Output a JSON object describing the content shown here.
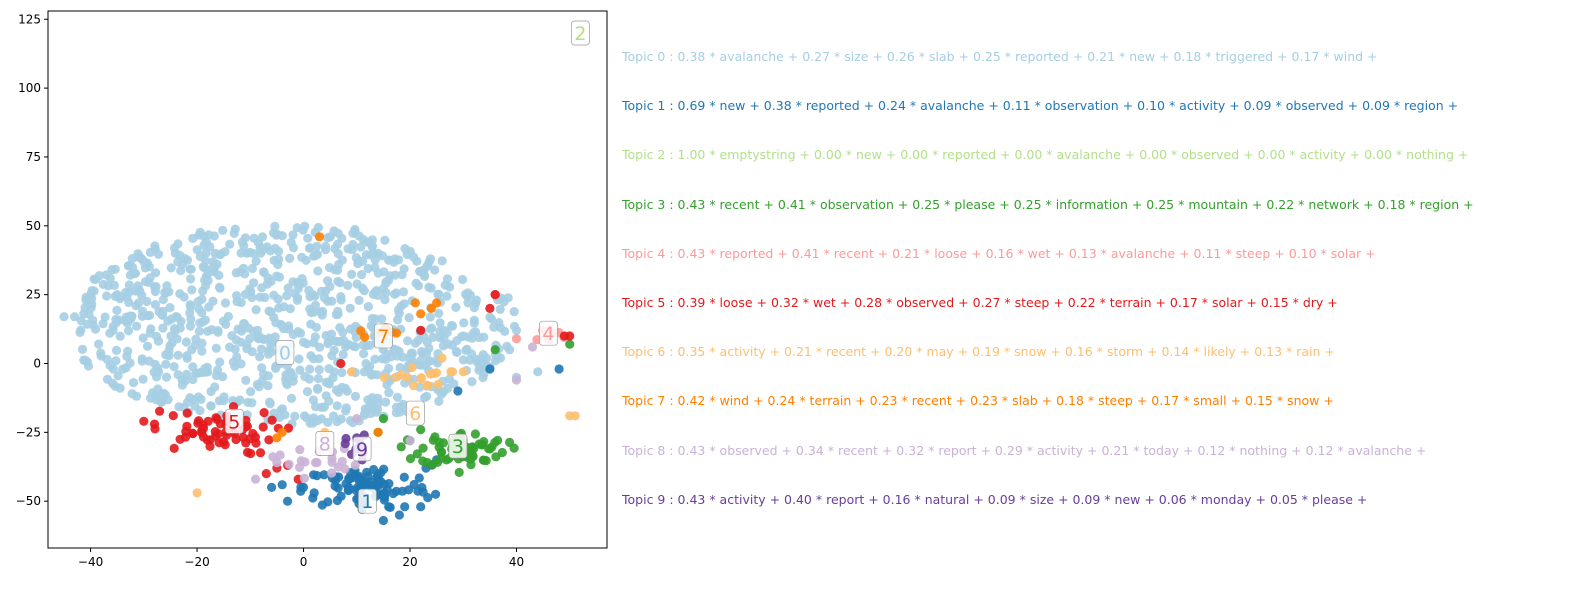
{
  "chart_data": {
    "type": "scatter",
    "title": "",
    "xlabel": "",
    "ylabel": "",
    "xlim": [
      -48,
      57
    ],
    "ylim": [
      -67,
      128
    ],
    "xticks": [
      -40,
      -20,
      0,
      20,
      40
    ],
    "yticks": [
      -50,
      -25,
      0,
      25,
      50,
      75,
      100,
      125
    ],
    "grid": false,
    "clusters": [
      {
        "id": 0,
        "label": "0",
        "color": "#a6cee3",
        "center": [
          -3.5,
          4
        ],
        "spread": [
          14,
          16
        ],
        "count": 900,
        "shape": "blob",
        "extra_points": [
          [
            -43,
            17
          ],
          [
            -45,
            17
          ],
          [
            -35,
            25
          ],
          [
            -21,
            5
          ],
          [
            -5,
            47
          ],
          [
            5,
            46
          ],
          [
            14,
            40
          ],
          [
            30,
            10
          ],
          [
            40,
            12
          ],
          [
            37,
            2
          ],
          [
            40,
            -5
          ],
          [
            44,
            -3
          ]
        ]
      },
      {
        "id": 1,
        "label": "1",
        "color": "#1f78b4",
        "center": [
          12,
          -45
        ],
        "spread": [
          6,
          4
        ],
        "count": 90,
        "shape": "cluster",
        "extra_points": [
          [
            -6,
            -45
          ],
          [
            -4,
            -44
          ],
          [
            -3,
            -50
          ],
          [
            0,
            -45
          ],
          [
            2,
            -47
          ],
          [
            16,
            -52
          ],
          [
            18,
            -55
          ],
          [
            19,
            -52
          ],
          [
            22,
            -52
          ],
          [
            11,
            -53
          ],
          [
            15,
            -57
          ],
          [
            36,
            25
          ],
          [
            48,
            -2
          ],
          [
            29,
            -10
          ],
          [
            25,
            -35
          ],
          [
            23,
            -38
          ],
          [
            35,
            -2
          ]
        ]
      },
      {
        "id": 2,
        "label": "2",
        "color": "#b2df8a",
        "center": [
          49,
          118
        ],
        "spread": [
          0,
          0
        ],
        "count": 0,
        "shape": "label-only",
        "extra_points": []
      },
      {
        "id": 3,
        "label": "3",
        "color": "#33a02c",
        "center": [
          30,
          -31
        ],
        "spread": [
          4,
          3
        ],
        "count": 70,
        "shape": "cluster",
        "extra_points": [
          [
            20,
            -28
          ],
          [
            22,
            -24
          ],
          [
            15,
            -20
          ],
          [
            14,
            -25
          ],
          [
            36,
            5
          ],
          [
            50,
            7
          ]
        ]
      },
      {
        "id": 4,
        "label": "4",
        "color": "#fb9a99",
        "center": [
          46,
          10
        ],
        "spread": [
          2,
          1.5
        ],
        "count": 8,
        "shape": "cluster",
        "extra_points": [
          [
            36,
            25
          ],
          [
            40,
            9
          ]
        ]
      },
      {
        "id": 5,
        "label": "5",
        "color": "#e31a1c",
        "center": [
          -17,
          -25
        ],
        "spread": [
          6,
          4
        ],
        "count": 60,
        "shape": "cluster",
        "extra_points": [
          [
            -30,
            -21
          ],
          [
            -28,
            -22
          ],
          [
            -7,
            -40
          ],
          [
            -5,
            -38
          ],
          [
            7,
            0
          ],
          [
            22,
            12
          ],
          [
            35,
            20
          ],
          [
            36,
            25
          ],
          [
            49,
            10
          ],
          [
            50,
            10
          ],
          [
            -1,
            -42
          ],
          [
            -3,
            -37
          ]
        ]
      },
      {
        "id": 6,
        "label": "6",
        "color": "#fdbf6f",
        "center": [
          21,
          -5
        ],
        "spread": [
          3,
          2
        ],
        "count": 15,
        "shape": "cluster",
        "extra_points": [
          [
            -20,
            -47
          ],
          [
            50,
            -19
          ],
          [
            51,
            -19
          ],
          [
            26,
            2
          ],
          [
            28,
            -3
          ],
          [
            30,
            -3
          ],
          [
            4,
            -25
          ],
          [
            9,
            -3
          ]
        ]
      },
      {
        "id": 7,
        "label": "7",
        "color": "#ff7f00",
        "center": [
          14,
          11
        ],
        "spread": [
          2,
          1.5
        ],
        "count": 6,
        "shape": "cluster",
        "extra_points": [
          [
            3,
            46
          ],
          [
            22,
            18
          ],
          [
            24,
            20
          ],
          [
            25,
            22
          ],
          [
            21,
            22
          ],
          [
            -5,
            -27
          ],
          [
            -4,
            -25
          ],
          [
            14,
            -25
          ]
        ]
      },
      {
        "id": 8,
        "label": "8",
        "color": "#cab2d6",
        "center": [
          2,
          -35
        ],
        "spread": [
          4,
          3
        ],
        "count": 20,
        "shape": "cluster",
        "extra_points": [
          [
            -9,
            -42
          ],
          [
            -5,
            -36
          ],
          [
            10,
            -20
          ],
          [
            20,
            -28
          ],
          [
            40,
            -6
          ],
          [
            43,
            6
          ]
        ]
      },
      {
        "id": 9,
        "label": "9",
        "color": "#6a3d9a",
        "center": [
          10,
          -30
        ],
        "spread": [
          1,
          2
        ],
        "count": 10,
        "shape": "cluster",
        "extra_points": [
          [
            10,
            -27
          ],
          [
            9,
            -33
          ],
          [
            11,
            -35
          ]
        ]
      }
    ],
    "cluster_label_positions": [
      {
        "label": "0",
        "x": -3.5,
        "y": 4,
        "color": "#a6cee3"
      },
      {
        "label": "1",
        "x": 12,
        "y": -50,
        "color": "#1f78b4"
      },
      {
        "label": "2",
        "x": 52,
        "y": 120,
        "color": "#b2df8a"
      },
      {
        "label": "3",
        "x": 29,
        "y": -30,
        "color": "#33a02c"
      },
      {
        "label": "4",
        "x": 46,
        "y": 11,
        "color": "#fb9a99"
      },
      {
        "label": "5",
        "x": -13,
        "y": -21,
        "color": "#e31a1c"
      },
      {
        "label": "6",
        "x": 21,
        "y": -18,
        "color": "#fdbf6f"
      },
      {
        "label": "7",
        "x": 15,
        "y": 10,
        "color": "#ff7f00"
      },
      {
        "label": "8",
        "x": 4,
        "y": -29,
        "color": "#cab2d6"
      },
      {
        "label": "9",
        "x": 11,
        "y": -31,
        "color": "#6a3d9a"
      }
    ]
  },
  "topics": [
    {
      "text": "Topic 0 : 0.38 * avalanche + 0.27 * size + 0.26 * slab + 0.25 * reported + 0.21 * new + 0.18 * triggered + 0.17 * wind +",
      "color": "#a6cee3"
    },
    {
      "text": "Topic 1 : 0.69 * new + 0.38 * reported + 0.24 * avalanche + 0.11 * observation + 0.10 * activity + 0.09 * observed + 0.09 * region +",
      "color": "#1f78b4"
    },
    {
      "text": "Topic 2 : 1.00 * emptystring + 0.00 * new + 0.00 * reported + 0.00 * avalanche + 0.00 * observed + 0.00 * activity + 0.00 * nothing +",
      "color": "#b2df8a"
    },
    {
      "text": "Topic 3 : 0.43 * recent + 0.41 * observation + 0.25 * please + 0.25 * information + 0.25 * mountain + 0.22 * network + 0.18 * region +",
      "color": "#33a02c"
    },
    {
      "text": "Topic 4 : 0.43 * reported + 0.41 * recent + 0.21 * loose + 0.16 * wet + 0.13 * avalanche + 0.11 * steep + 0.10 * solar +",
      "color": "#fb9a99"
    },
    {
      "text": "Topic 5 : 0.39 * loose + 0.32 * wet + 0.28 * observed + 0.27 * steep + 0.22 * terrain + 0.17 * solar + 0.15 * dry +",
      "color": "#e31a1c"
    },
    {
      "text": "Topic 6 : 0.35 * activity + 0.21 * recent + 0.20 * may + 0.19 * snow + 0.16 * storm + 0.14 * likely + 0.13 * rain +",
      "color": "#fdbf6f"
    },
    {
      "text": "Topic 7 : 0.42 * wind + 0.24 * terrain + 0.23 * recent + 0.23 * slab + 0.18 * steep + 0.17 * small + 0.15 * snow +",
      "color": "#ff7f00"
    },
    {
      "text": "Topic 8 : 0.43 * observed + 0.34 * recent + 0.32 * report + 0.29 * activity + 0.21 * today + 0.12 * nothing + 0.12 * avalanche +",
      "color": "#cab2d6"
    },
    {
      "text": "Topic 9 : 0.43 * activity + 0.40 * report + 0.16 * natural + 0.09 * size + 0.09 * new + 0.06 * monday + 0.05 * please +",
      "color": "#6a3d9a"
    }
  ]
}
